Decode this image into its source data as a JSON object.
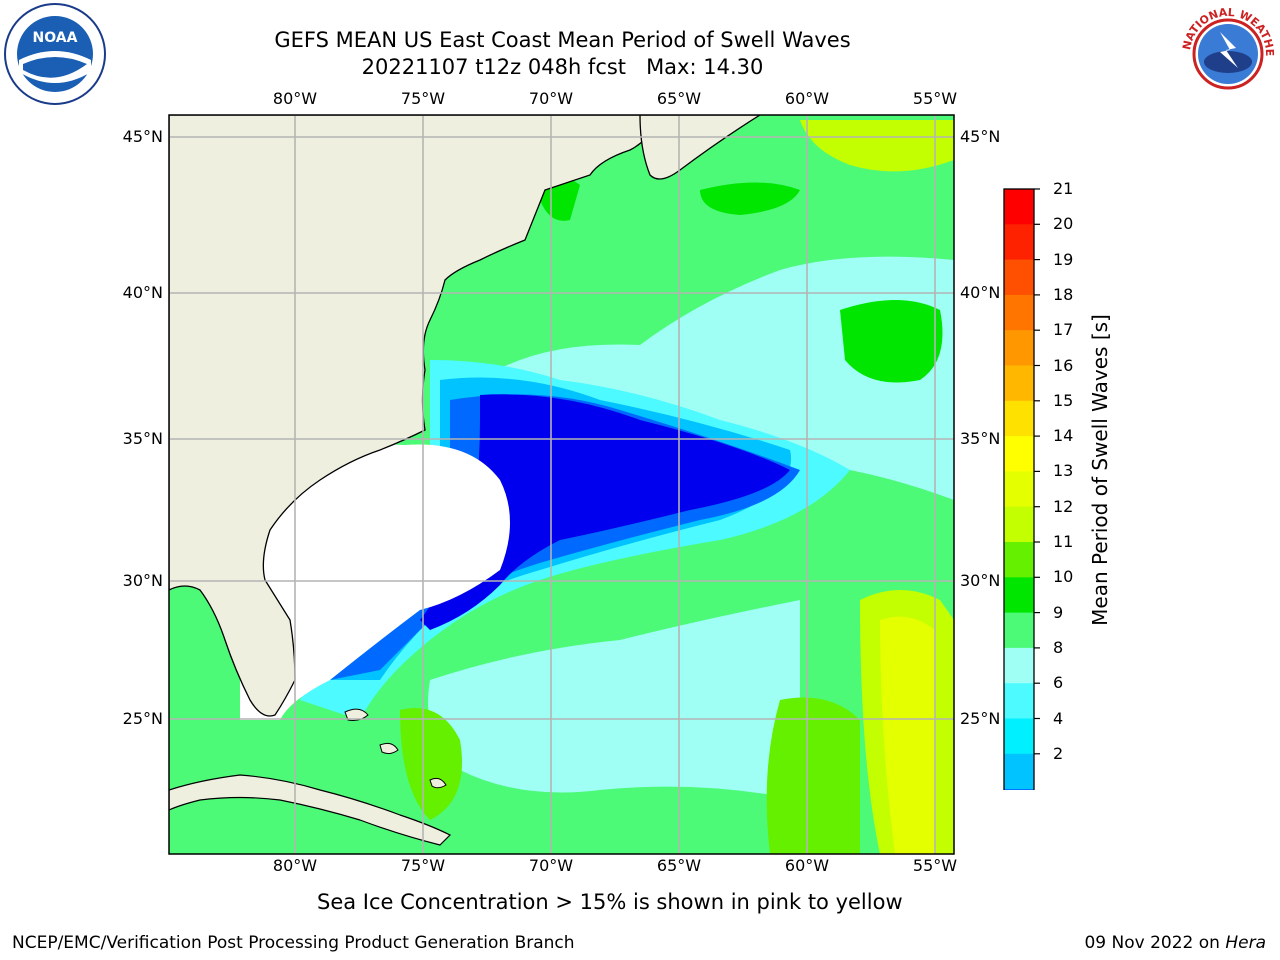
{
  "header": {
    "title_line1": "GEFS MEAN US East Coast Mean Period of Swell Waves",
    "title_line2": "20221107 t12z 048h fcst   Max: 14.30"
  },
  "logos": {
    "left": {
      "icon": "noaa-logo",
      "text": "NOAA"
    },
    "right": {
      "icon": "national-weather-service-logo",
      "text": "NATIONAL WEATHER SERVICE"
    }
  },
  "map": {
    "lon_labels": [
      "80°W",
      "75°W",
      "70°W",
      "65°W",
      "60°W",
      "55°W"
    ],
    "lat_labels": [
      "45°N",
      "40°N",
      "35°N",
      "30°N",
      "25°N"
    ],
    "land_color": "#efefdf",
    "grid_color": "#b4b4b4",
    "coastline_color": "#000000"
  },
  "colorbar": {
    "label": "Mean Period of Swell Waves [s]",
    "ticks": [
      "21",
      "20",
      "19",
      "18",
      "17",
      "16",
      "15",
      "14",
      "13",
      "12",
      "11",
      "10",
      "9",
      "8",
      "6",
      "4",
      "2"
    ],
    "colors_top_to_bottom": [
      "#ff0000",
      "#ff2200",
      "#ff4f00",
      "#ff7500",
      "#ff9800",
      "#ffb700",
      "#ffe100",
      "#ffff00",
      "#e4ff00",
      "#c3ff00",
      "#65f000",
      "#00e600",
      "#4cfa78",
      "#9ffff5",
      "#4cfaff",
      "#00f0ff",
      "#00c3ff",
      "#0069ff"
    ],
    "extend_min_color": "#0000ee"
  },
  "footer": {
    "note": "Sea Ice Concentration > 15% is shown in pink to yellow",
    "left": "NCEP/EMC/Verification Post Processing Product Generation Branch",
    "date": "09 Nov 2022 on",
    "machine": "Hera"
  }
}
